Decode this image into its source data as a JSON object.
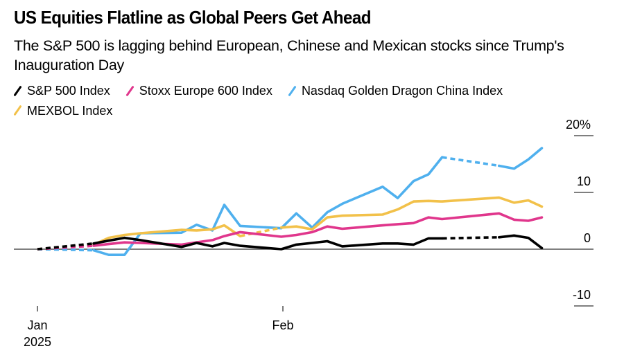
{
  "chart_data": {
    "type": "line",
    "title": "US Equities Flatline as Global Peers Get Ahead",
    "subtitle": "The S&P 500 is lagging behind European, Chinese and Mexican stocks since Trump's Inauguration Day",
    "xlabel": "",
    "ylabel": "",
    "y_unit": "%",
    "ylim": [
      -10,
      20
    ],
    "yticks": [
      {
        "value": 20,
        "label": "20%"
      },
      {
        "value": 10,
        "label": "10"
      },
      {
        "value": 0,
        "label": "0"
      },
      {
        "value": -10,
        "label": "-10"
      }
    ],
    "xlim_days": [
      0,
      71
    ],
    "xticks": [
      {
        "day": 0,
        "label": "Jan",
        "sublabel": "2025"
      },
      {
        "day": 31,
        "label": "Feb",
        "sublabel": ""
      }
    ],
    "grid": false,
    "legend_position": "top-left",
    "x_days": [
      0,
      7.1,
      9,
      11,
      13,
      18.2,
      20.1,
      22.1,
      23.6,
      25.6,
      30.8,
      32.7,
      34.7,
      36.6,
      38.5,
      43.6,
      45.5,
      47.5,
      49.4,
      51.1,
      58.3,
      60.2,
      62,
      63.7
    ],
    "series": [
      {
        "name": "S&P 500 Index",
        "color": "#000000",
        "values": [
          0,
          1.0,
          1.5,
          2.0,
          1.6,
          0.4,
          1.1,
          0.5,
          1.1,
          0.6,
          0.0,
          0.8,
          1.1,
          1.4,
          0.5,
          1.0,
          1.0,
          0.8,
          1.9,
          1.9,
          2.1,
          2.4,
          2.0,
          0.2
        ],
        "dashed_segments": [
          [
            0,
            1
          ],
          [
            19,
            20
          ]
        ]
      },
      {
        "name": "Stoxx Europe 600 Index",
        "color": "#e0368c",
        "values": [
          0,
          0.6,
          0.9,
          1.2,
          1.1,
          0.8,
          1.2,
          1.6,
          2.3,
          3.0,
          2.2,
          2.5,
          3.0,
          4.0,
          3.6,
          4.2,
          4.4,
          4.6,
          5.6,
          5.3,
          6.3,
          5.2,
          5.0,
          5.6
        ],
        "dashed_segments": [
          [
            0,
            1
          ]
        ]
      },
      {
        "name": "Nasdaq Golden Dragon China Index",
        "color": "#4fb0ee",
        "values": [
          0,
          -0.2,
          -1.0,
          -1.0,
          2.8,
          2.9,
          4.3,
          3.3,
          7.8,
          4.1,
          3.7,
          6.3,
          3.8,
          6.5,
          8.0,
          11.0,
          9.0,
          12.0,
          13.2,
          16.2,
          14.7,
          14.2,
          15.8,
          17.8
        ],
        "dashed_segments": [
          [
            0,
            1
          ],
          [
            19,
            20
          ]
        ]
      },
      {
        "name": "MEXBOL Index",
        "color": "#f2c14a",
        "values": [
          0,
          0.8,
          2.0,
          2.5,
          2.8,
          3.4,
          3.3,
          3.5,
          4.2,
          2.3,
          3.8,
          4.0,
          3.5,
          5.6,
          5.9,
          6.1,
          7.0,
          8.4,
          8.5,
          8.4,
          9.1,
          8.2,
          8.6,
          7.5
        ],
        "dashed_segments": [
          [
            0,
            1
          ],
          [
            9,
            10
          ]
        ]
      }
    ]
  }
}
